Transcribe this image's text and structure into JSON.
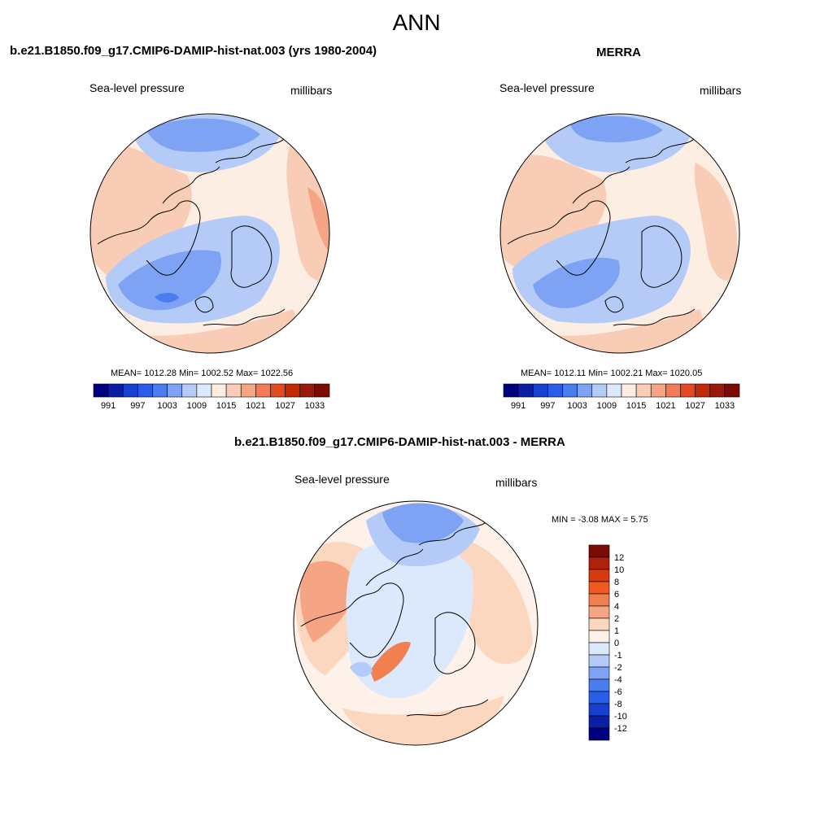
{
  "page": {
    "title": "ANN"
  },
  "panels": [
    {
      "id": "model",
      "title": "b.e21.B1850.f09_g17.CMIP6-DAMIP-hist-nat.003 (yrs 1980-2004)",
      "variable": "Sea-level pressure",
      "units": "millibars",
      "stats": "MEAN= 1012.28  Min= 1002.52  Max= 1022.56"
    },
    {
      "id": "obs",
      "title": "MERRA",
      "variable": "Sea-level pressure",
      "units": "millibars",
      "stats": "MEAN= 1012.11  Min= 1002.21  Max= 1020.05"
    },
    {
      "id": "diff",
      "title": "b.e21.B1850.f09_g17.CMIP6-DAMIP-hist-nat.003 - MERRA",
      "variable": "Sea-level pressure",
      "units": "millibars",
      "stats": "MIN =  -3.08 MAX =   5.75"
    }
  ],
  "colorbars": {
    "absolute": {
      "orientation": "horizontal",
      "colors": [
        "#00007f",
        "#0b1fa5",
        "#1640cd",
        "#2b5ee8",
        "#4a7eef",
        "#7ea2f4",
        "#b4cbf8",
        "#dce8fb",
        "#fdeee3",
        "#f9ccb5",
        "#f5a583",
        "#f07b55",
        "#e44a1f",
        "#c02a08",
        "#99190a",
        "#7c0a05"
      ],
      "tick_labels": [
        "991",
        "997",
        "1003",
        "1009",
        "1015",
        "1021",
        "1027",
        "1033"
      ]
    },
    "difference": {
      "orientation": "vertical",
      "colors": [
        "#7c0a05",
        "#b0210a",
        "#d83a10",
        "#ef5a24",
        "#f27f50",
        "#f5a583",
        "#fbd7c0",
        "#fdf1e9",
        "#dce8fb",
        "#b4cbf8",
        "#7ea2f4",
        "#4a7eef",
        "#2b5ee8",
        "#1640cd",
        "#0b1fa5",
        "#00007f"
      ],
      "tick_labels": [
        "12",
        "10",
        "8",
        "6",
        "4",
        "2",
        "1",
        "0",
        "-1",
        "-2",
        "-4",
        "-6",
        "-8",
        "-10",
        "-12"
      ]
    }
  },
  "map_colors": {
    "ocean_blue": "#b4cbf8",
    "deep_blue": "#7ea2f4",
    "low_blue": "#4a7eef",
    "pale": "#fdeee3",
    "salmon": "#f9ccb5",
    "orange": "#f5a583",
    "strong": "#f07b55"
  }
}
